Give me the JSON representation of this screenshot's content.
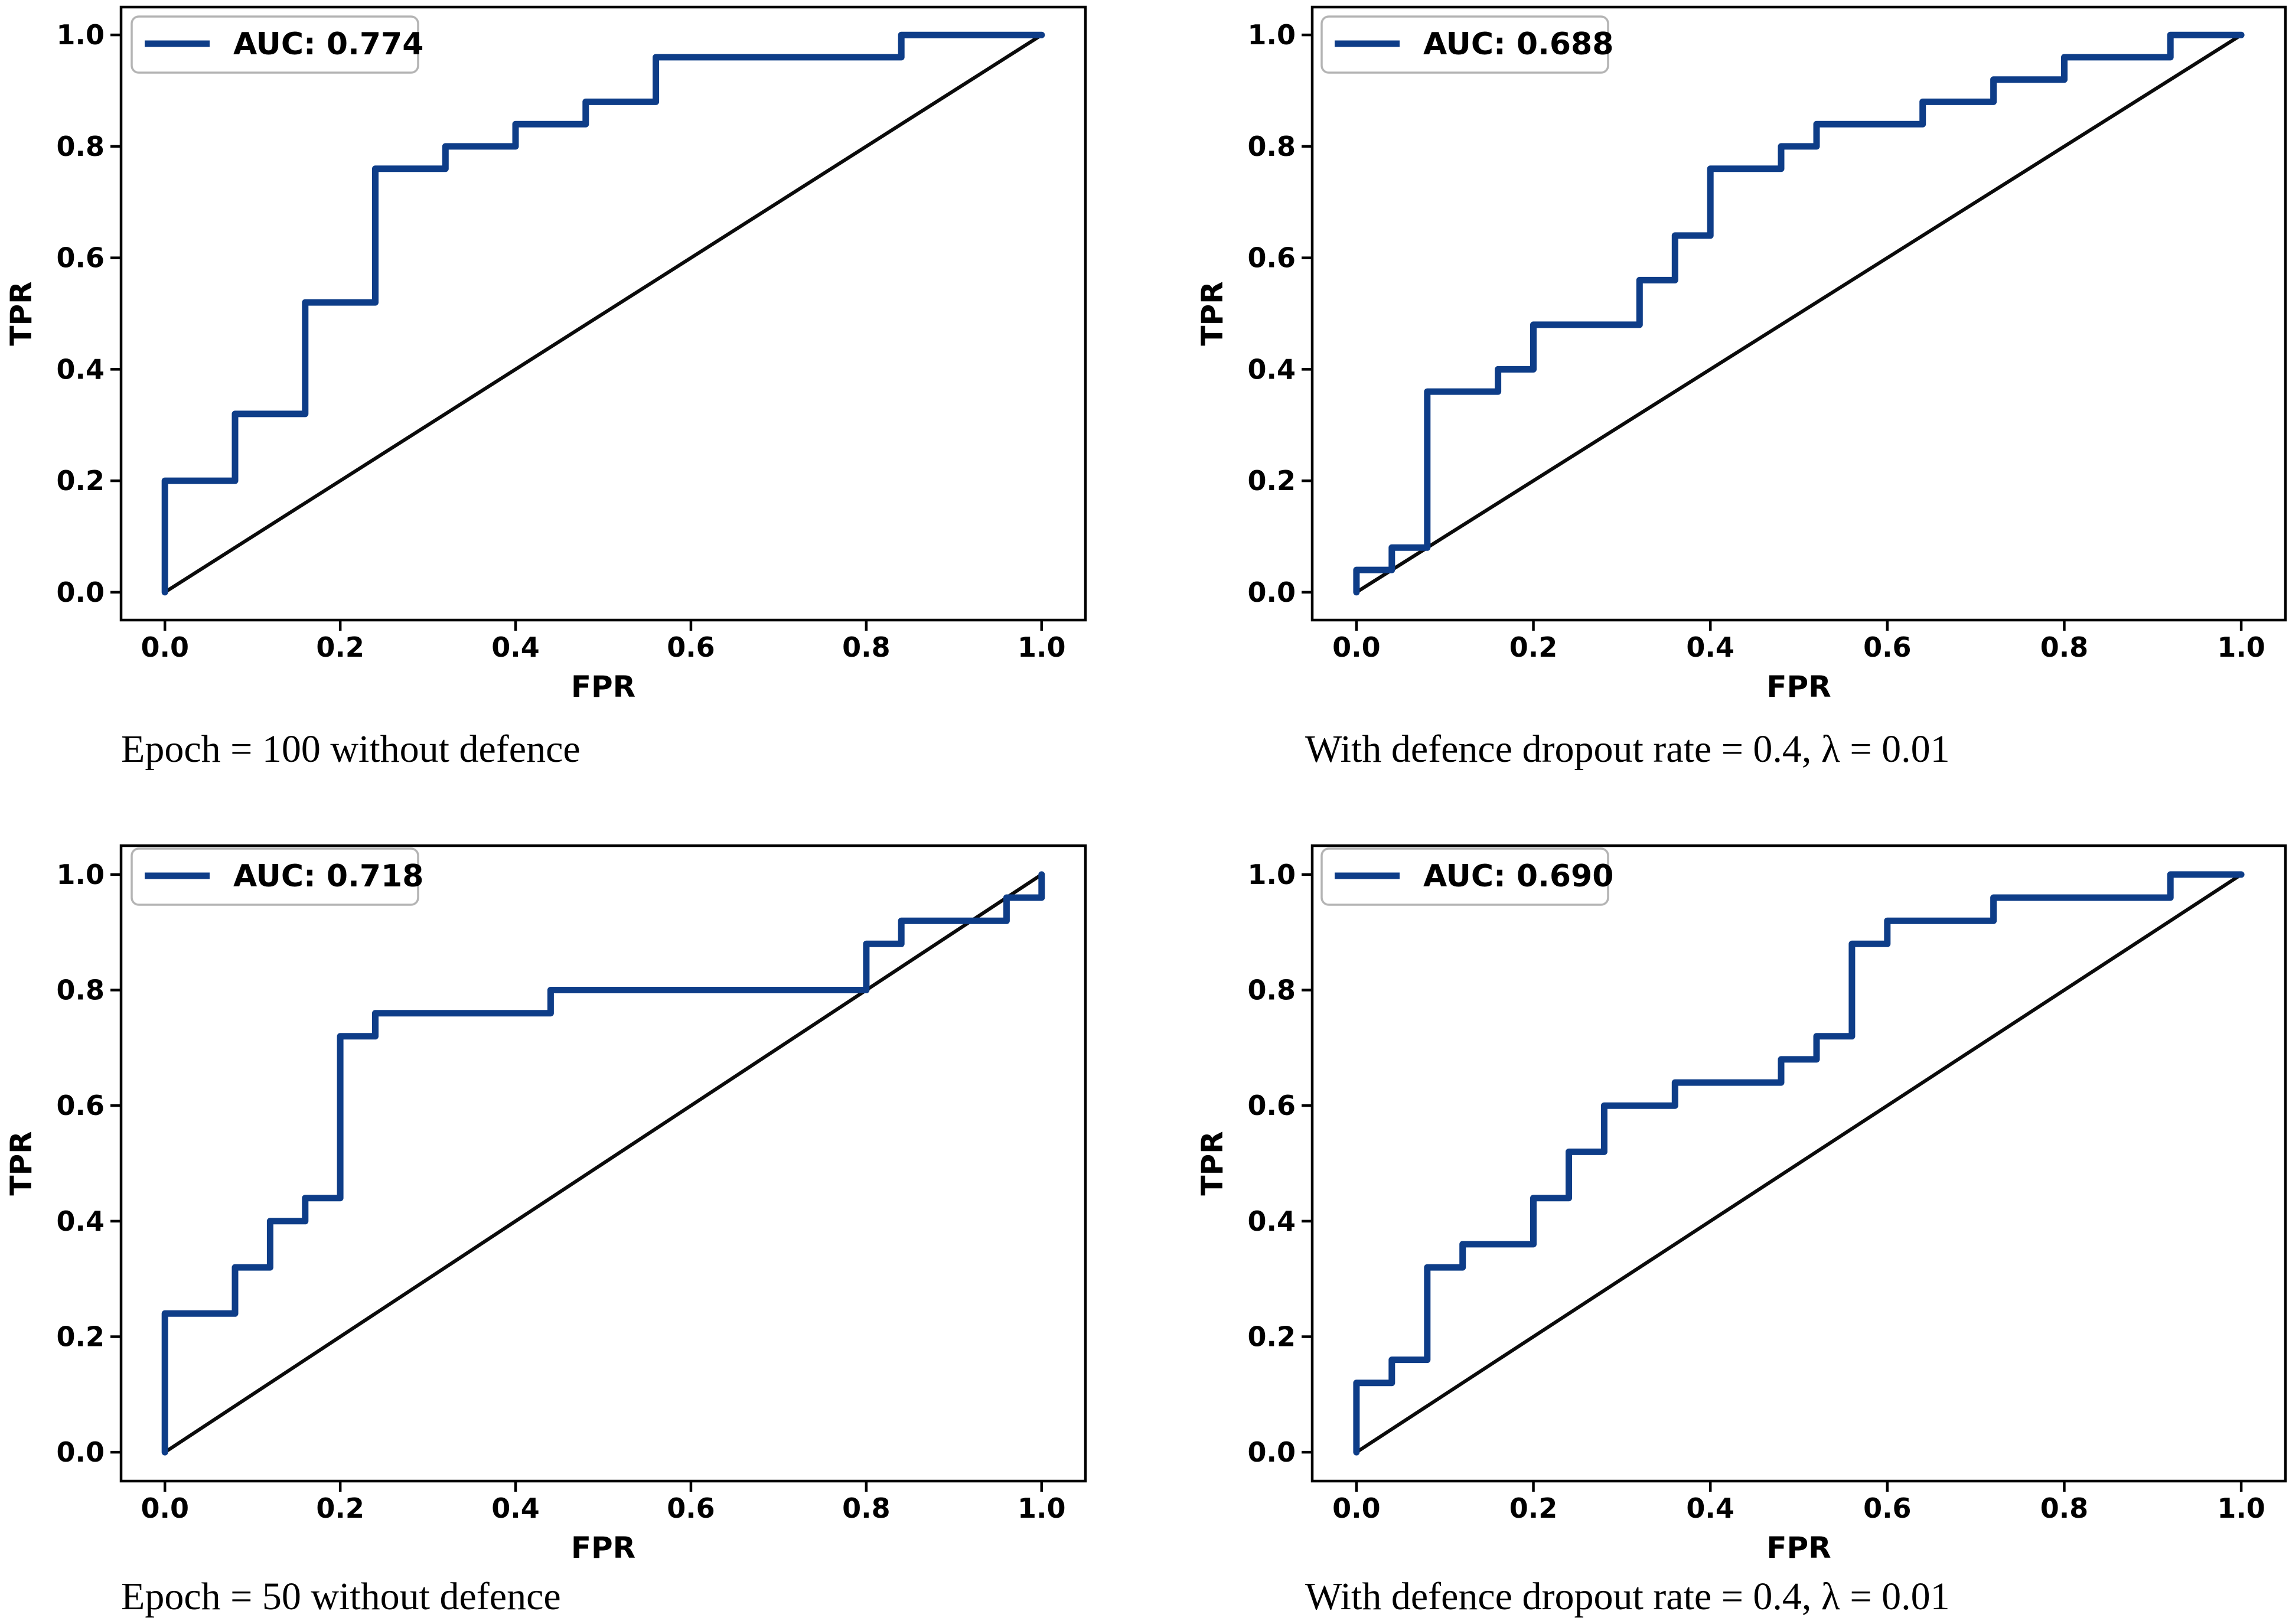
{
  "figure": {
    "background": "#ffffff",
    "n_rows": 2,
    "n_cols": 2
  },
  "colors": {
    "roc_curve": "#0e3d88",
    "chance_line": "#0b0b0b",
    "axes_frame": "#000000",
    "tick_text": "#000000",
    "legend_border": "#b4b4b4",
    "legend_fill": "#ffffff",
    "caption_text": "#000000"
  },
  "chart_data": [
    {
      "type": "line",
      "subtype": "roc-step",
      "panel": "top-left",
      "caption": "Epoch = 100 without defence",
      "legend": {
        "label": "AUC: 0.774",
        "position": "upper left"
      },
      "auc": 0.774,
      "xlabel": "FPR",
      "ylabel": "TPR",
      "xlim": [
        -0.05,
        1.05
      ],
      "ylim": [
        -0.05,
        1.05
      ],
      "xticks": [
        0.0,
        0.2,
        0.4,
        0.6,
        0.8,
        1.0
      ],
      "yticks": [
        0.0,
        0.2,
        0.4,
        0.6,
        0.8,
        1.0
      ],
      "grid": false,
      "series": [
        {
          "name": "roc",
          "role": "roc-curve",
          "points": [
            [
              0,
              0
            ],
            [
              0,
              0.2
            ],
            [
              0.08,
              0.2
            ],
            [
              0.08,
              0.32
            ],
            [
              0.16,
              0.32
            ],
            [
              0.16,
              0.52
            ],
            [
              0.24,
              0.52
            ],
            [
              0.24,
              0.76
            ],
            [
              0.32,
              0.76
            ],
            [
              0.32,
              0.8
            ],
            [
              0.4,
              0.8
            ],
            [
              0.4,
              0.84
            ],
            [
              0.48,
              0.84
            ],
            [
              0.48,
              0.88
            ],
            [
              0.56,
              0.88
            ],
            [
              0.56,
              0.96
            ],
            [
              0.84,
              0.96
            ],
            [
              0.84,
              1.0
            ],
            [
              1.0,
              1.0
            ]
          ]
        },
        {
          "name": "chance",
          "role": "chance-diagonal",
          "points": [
            [
              0,
              0
            ],
            [
              1,
              1
            ]
          ]
        }
      ]
    },
    {
      "type": "line",
      "subtype": "roc-step",
      "panel": "top-right",
      "caption": "With defence dropout rate = 0.4, λ = 0.01",
      "legend": {
        "label": "AUC: 0.688",
        "position": "upper left"
      },
      "auc": 0.688,
      "xlabel": "FPR",
      "ylabel": "TPR",
      "xlim": [
        -0.05,
        1.05
      ],
      "ylim": [
        -0.05,
        1.05
      ],
      "xticks": [
        0.0,
        0.2,
        0.4,
        0.6,
        0.8,
        1.0
      ],
      "yticks": [
        0.0,
        0.2,
        0.4,
        0.6,
        0.8,
        1.0
      ],
      "grid": false,
      "series": [
        {
          "name": "roc",
          "role": "roc-curve",
          "points": [
            [
              0,
              0
            ],
            [
              0,
              0.04
            ],
            [
              0.04,
              0.04
            ],
            [
              0.04,
              0.08
            ],
            [
              0.08,
              0.08
            ],
            [
              0.08,
              0.36
            ],
            [
              0.16,
              0.36
            ],
            [
              0.16,
              0.4
            ],
            [
              0.2,
              0.4
            ],
            [
              0.2,
              0.48
            ],
            [
              0.32,
              0.48
            ],
            [
              0.32,
              0.56
            ],
            [
              0.36,
              0.56
            ],
            [
              0.36,
              0.64
            ],
            [
              0.4,
              0.64
            ],
            [
              0.4,
              0.76
            ],
            [
              0.48,
              0.76
            ],
            [
              0.48,
              0.8
            ],
            [
              0.52,
              0.8
            ],
            [
              0.52,
              0.84
            ],
            [
              0.64,
              0.84
            ],
            [
              0.64,
              0.88
            ],
            [
              0.72,
              0.88
            ],
            [
              0.72,
              0.92
            ],
            [
              0.8,
              0.92
            ],
            [
              0.8,
              0.96
            ],
            [
              0.92,
              0.96
            ],
            [
              0.92,
              1.0
            ],
            [
              1.0,
              1.0
            ]
          ]
        },
        {
          "name": "chance",
          "role": "chance-diagonal",
          "points": [
            [
              0,
              0
            ],
            [
              1,
              1
            ]
          ]
        }
      ]
    },
    {
      "type": "line",
      "subtype": "roc-step",
      "panel": "bottom-left",
      "caption": "Epoch = 50 without defence",
      "legend": {
        "label": "AUC: 0.718",
        "position": "upper left"
      },
      "auc": 0.718,
      "xlabel": "FPR",
      "ylabel": "TPR",
      "xlim": [
        -0.05,
        1.05
      ],
      "ylim": [
        -0.05,
        1.05
      ],
      "xticks": [
        0.0,
        0.2,
        0.4,
        0.6,
        0.8,
        1.0
      ],
      "yticks": [
        0.0,
        0.2,
        0.4,
        0.6,
        0.8,
        1.0
      ],
      "grid": false,
      "series": [
        {
          "name": "roc",
          "role": "roc-curve",
          "points": [
            [
              0,
              0
            ],
            [
              0,
              0.24
            ],
            [
              0.08,
              0.24
            ],
            [
              0.08,
              0.32
            ],
            [
              0.12,
              0.32
            ],
            [
              0.12,
              0.4
            ],
            [
              0.16,
              0.4
            ],
            [
              0.16,
              0.44
            ],
            [
              0.2,
              0.44
            ],
            [
              0.2,
              0.72
            ],
            [
              0.24,
              0.72
            ],
            [
              0.24,
              0.76
            ],
            [
              0.44,
              0.76
            ],
            [
              0.44,
              0.8
            ],
            [
              0.8,
              0.8
            ],
            [
              0.8,
              0.88
            ],
            [
              0.84,
              0.88
            ],
            [
              0.84,
              0.92
            ],
            [
              0.96,
              0.92
            ],
            [
              0.96,
              0.96
            ],
            [
              1.0,
              0.96
            ],
            [
              1.0,
              1.0
            ]
          ]
        },
        {
          "name": "chance",
          "role": "chance-diagonal",
          "points": [
            [
              0,
              0
            ],
            [
              1,
              1
            ]
          ]
        }
      ]
    },
    {
      "type": "line",
      "subtype": "roc-step",
      "panel": "bottom-right",
      "caption": "With defence dropout rate = 0.4, λ = 0.01",
      "legend": {
        "label": "AUC: 0.690",
        "position": "upper left"
      },
      "auc": 0.69,
      "xlabel": "FPR",
      "ylabel": "TPR",
      "xlim": [
        -0.05,
        1.05
      ],
      "ylim": [
        -0.05,
        1.05
      ],
      "xticks": [
        0.0,
        0.2,
        0.4,
        0.6,
        0.8,
        1.0
      ],
      "yticks": [
        0.0,
        0.2,
        0.4,
        0.6,
        0.8,
        1.0
      ],
      "grid": false,
      "series": [
        {
          "name": "roc",
          "role": "roc-curve",
          "points": [
            [
              0,
              0
            ],
            [
              0,
              0.12
            ],
            [
              0.04,
              0.12
            ],
            [
              0.04,
              0.16
            ],
            [
              0.08,
              0.16
            ],
            [
              0.08,
              0.32
            ],
            [
              0.12,
              0.32
            ],
            [
              0.12,
              0.36
            ],
            [
              0.2,
              0.36
            ],
            [
              0.2,
              0.44
            ],
            [
              0.24,
              0.44
            ],
            [
              0.24,
              0.52
            ],
            [
              0.28,
              0.52
            ],
            [
              0.28,
              0.6
            ],
            [
              0.36,
              0.6
            ],
            [
              0.36,
              0.64
            ],
            [
              0.48,
              0.64
            ],
            [
              0.48,
              0.68
            ],
            [
              0.52,
              0.68
            ],
            [
              0.52,
              0.72
            ],
            [
              0.56,
              0.72
            ],
            [
              0.56,
              0.88
            ],
            [
              0.6,
              0.88
            ],
            [
              0.6,
              0.92
            ],
            [
              0.72,
              0.92
            ],
            [
              0.72,
              0.96
            ],
            [
              0.92,
              0.96
            ],
            [
              0.92,
              1.0
            ],
            [
              1.0,
              1.0
            ]
          ]
        },
        {
          "name": "chance",
          "role": "chance-diagonal",
          "points": [
            [
              0,
              0
            ],
            [
              1,
              1
            ]
          ]
        }
      ]
    }
  ]
}
